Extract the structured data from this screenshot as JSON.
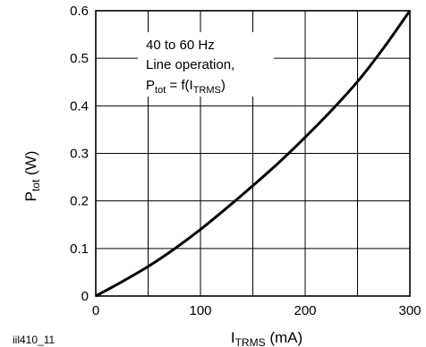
{
  "chart_data": {
    "type": "line",
    "title": "",
    "figure_id": "iil410_11",
    "xlabel": {
      "main": "I",
      "sub": "TRMS",
      "unit": " (mA)"
    },
    "ylabel": {
      "main": "P",
      "sub": "tot",
      "unit": " (W)"
    },
    "xlim": [
      0,
      300
    ],
    "ylim": [
      0,
      0.6
    ],
    "x_ticks": [
      0,
      100,
      200,
      300
    ],
    "y_ticks": [
      "0",
      "0.1",
      "0.2",
      "0.3",
      "0.4",
      "0.5",
      "0.6"
    ],
    "grid": true,
    "annotation": {
      "line1": "40 to 60 Hz",
      "line2": "Line operation,",
      "line3_main": "P",
      "line3_sub": "tot",
      "line3_mid": " = f(I",
      "line3_sub2": "TRMS",
      "line3_end": ")"
    },
    "series": [
      {
        "x": [
          0,
          25,
          50,
          75,
          100,
          125,
          150,
          175,
          200,
          225,
          250,
          275,
          300
        ],
        "y": [
          0.0,
          0.03,
          0.062,
          0.099,
          0.14,
          0.185,
          0.232,
          0.281,
          0.334,
          0.39,
          0.451,
          0.522,
          0.6
        ]
      }
    ]
  }
}
